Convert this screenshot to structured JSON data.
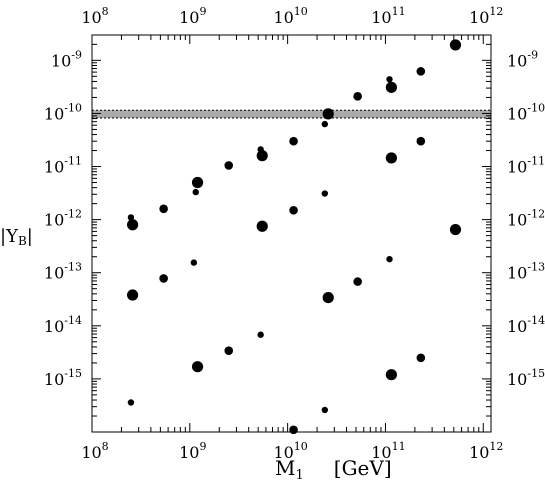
{
  "chart_data": {
    "type": "scatter",
    "xlabel": "M",
    "xlabel_sub": "1",
    "xlabel_unit": "[GeV]",
    "ylabel": "|Y",
    "ylabel_sub": "B",
    "ylabel_tail": "|",
    "x_scale": "log",
    "y_scale": "log",
    "xlim": [
      100000000.0,
      1200000000000.0
    ],
    "ylim": [
      1e-16,
      3e-09
    ],
    "x_ticks": [
      {
        "base": "10",
        "exp": "8",
        "value": 100000000.0
      },
      {
        "base": "10",
        "exp": "9",
        "value": 1000000000.0
      },
      {
        "base": "10",
        "exp": "10",
        "value": 10000000000.0
      },
      {
        "base": "10",
        "exp": "11",
        "value": 100000000000.0
      },
      {
        "base": "10",
        "exp": "12",
        "value": 1000000000000.0
      }
    ],
    "y_ticks": [
      {
        "base": "10",
        "exp": "-9",
        "value": 1e-09
      },
      {
        "base": "10",
        "exp": "-10",
        "value": 1e-10
      },
      {
        "base": "10",
        "exp": "-11",
        "value": 1e-11
      },
      {
        "base": "10",
        "exp": "-12",
        "value": 1e-12
      },
      {
        "base": "10",
        "exp": "-13",
        "value": 1e-13
      },
      {
        "base": "10",
        "exp": "-14",
        "value": 1e-14
      },
      {
        "base": "10",
        "exp": "-15",
        "value": 1e-15
      }
    ],
    "band": {
      "y_low": 8.2e-11,
      "y_high": 1.15e-10,
      "color": "#aaaaaa"
    },
    "points": [
      {
        "x": 250000000.0,
        "y": 1.1e-12,
        "size": "small"
      },
      {
        "x": 260000000.0,
        "y": 8e-13,
        "size": "large"
      },
      {
        "x": 540000000.0,
        "y": 1.6e-12,
        "size": "medium"
      },
      {
        "x": 1150000000.0,
        "y": 3.3e-12,
        "size": "small"
      },
      {
        "x": 1200000000.0,
        "y": 5e-12,
        "size": "large"
      },
      {
        "x": 2500000000.0,
        "y": 1.05e-11,
        "size": "medium"
      },
      {
        "x": 5300000000.0,
        "y": 2.1e-11,
        "size": "small"
      },
      {
        "x": 5500000000.0,
        "y": 1.6e-11,
        "size": "large"
      },
      {
        "x": 11500000000.0,
        "y": 3e-11,
        "size": "medium"
      },
      {
        "x": 24000000000.0,
        "y": 6.3e-11,
        "size": "small"
      },
      {
        "x": 26000000000.0,
        "y": 9.8e-11,
        "size": "large"
      },
      {
        "x": 52000000000.0,
        "y": 2.1e-10,
        "size": "medium"
      },
      {
        "x": 110000000000.0,
        "y": 4.4e-10,
        "size": "small"
      },
      {
        "x": 115000000000.0,
        "y": 3.1e-10,
        "size": "large"
      },
      {
        "x": 230000000000.0,
        "y": 6.2e-10,
        "size": "medium"
      },
      {
        "x": 520000000000.0,
        "y": 1.95e-09,
        "size": "large"
      },
      {
        "x": 24000000000.0,
        "y": 3.1e-12,
        "size": "small"
      },
      {
        "x": 115000000000.0,
        "y": 1.45e-11,
        "size": "large"
      },
      {
        "x": 230000000000.0,
        "y": 3e-11,
        "size": "medium"
      },
      {
        "x": 5500000000.0,
        "y": 7.5e-13,
        "size": "large"
      },
      {
        "x": 11500000000.0,
        "y": 1.5e-12,
        "size": "medium"
      },
      {
        "x": 520000000000.0,
        "y": 6.5e-13,
        "size": "large"
      },
      {
        "x": 1100000000.0,
        "y": 1.55e-13,
        "size": "small"
      },
      {
        "x": 540000000.0,
        "y": 7.8e-14,
        "size": "medium"
      },
      {
        "x": 260000000.0,
        "y": 3.8e-14,
        "size": "large"
      },
      {
        "x": 110000000000.0,
        "y": 1.8e-13,
        "size": "small"
      },
      {
        "x": 52000000000.0,
        "y": 6.8e-14,
        "size": "medium"
      },
      {
        "x": 26000000000.0,
        "y": 3.4e-14,
        "size": "large"
      },
      {
        "x": 5300000000.0,
        "y": 6.8e-15,
        "size": "small"
      },
      {
        "x": 2500000000.0,
        "y": 3.4e-15,
        "size": "medium"
      },
      {
        "x": 1200000000.0,
        "y": 1.7e-15,
        "size": "large"
      },
      {
        "x": 250000000.0,
        "y": 3.6e-16,
        "size": "small"
      },
      {
        "x": 230000000000.0,
        "y": 2.5e-15,
        "size": "medium"
      },
      {
        "x": 115000000000.0,
        "y": 1.2e-15,
        "size": "large"
      },
      {
        "x": 24000000000.0,
        "y": 2.6e-16,
        "size": "small"
      },
      {
        "x": 11500000000.0,
        "y": 1.1e-16,
        "size": "medium"
      }
    ]
  }
}
